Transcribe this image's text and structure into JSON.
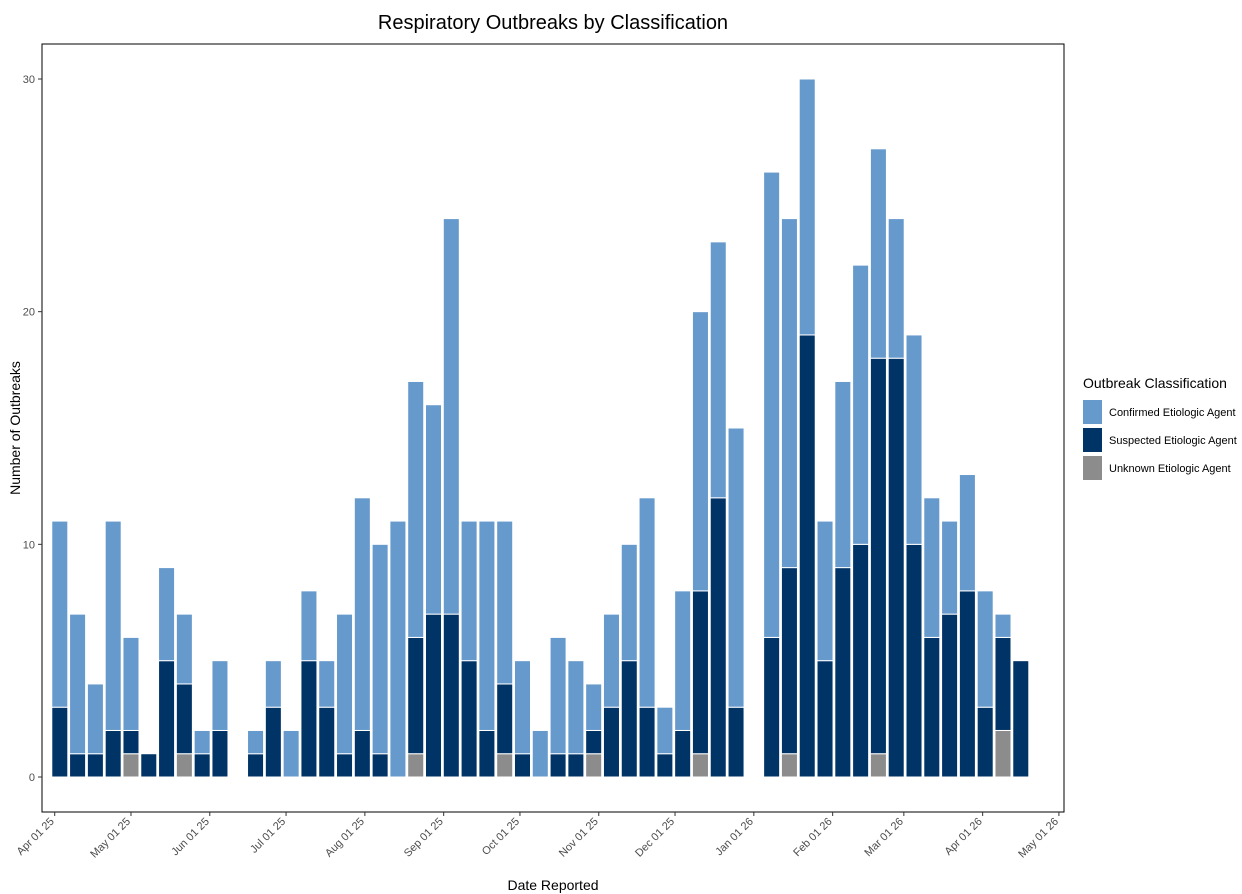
{
  "chart_data": {
    "type": "bar",
    "stacked": true,
    "title": "Respiratory Outbreaks by Classification",
    "xlabel": "Date Reported",
    "ylabel": "Number of Outbreaks",
    "ylim": [
      0,
      30
    ],
    "yticks": [
      0,
      10,
      20,
      30
    ],
    "xlim": [
      "2025-03-27",
      "2026-05-03"
    ],
    "xticks": [
      {
        "date": "2025-04-01",
        "label": "Apr 01 25"
      },
      {
        "date": "2025-05-01",
        "label": "May 01 25"
      },
      {
        "date": "2025-06-01",
        "label": "Jun 01 25"
      },
      {
        "date": "2025-07-01",
        "label": "Jul 01 25"
      },
      {
        "date": "2025-08-01",
        "label": "Aug 01 25"
      },
      {
        "date": "2025-09-01",
        "label": "Sep 01 25"
      },
      {
        "date": "2025-10-01",
        "label": "Oct 01 25"
      },
      {
        "date": "2025-11-01",
        "label": "Nov 01 25"
      },
      {
        "date": "2025-12-01",
        "label": "Dec 01 25"
      },
      {
        "date": "2026-01-01",
        "label": "Jan 01 26"
      },
      {
        "date": "2026-02-01",
        "label": "Feb 01 26"
      },
      {
        "date": "2026-03-01",
        "label": "Mar 01 26"
      },
      {
        "date": "2026-04-01",
        "label": "Apr 01 26"
      },
      {
        "date": "2026-05-01",
        "label": "May 01 26"
      }
    ],
    "grid": false,
    "legend": {
      "title": "Outbreak Classification",
      "position": "right"
    },
    "categories": [
      "2025-04-03",
      "2025-04-10",
      "2025-04-17",
      "2025-04-24",
      "2025-05-01",
      "2025-05-08",
      "2025-05-15",
      "2025-05-22",
      "2025-05-29",
      "2025-06-05",
      "2025-06-19",
      "2025-06-26",
      "2025-07-03",
      "2025-07-10",
      "2025-07-17",
      "2025-07-24",
      "2025-07-31",
      "2025-08-07",
      "2025-08-14",
      "2025-08-21",
      "2025-08-28",
      "2025-09-04",
      "2025-09-11",
      "2025-09-18",
      "2025-09-25",
      "2025-10-02",
      "2025-10-09",
      "2025-10-16",
      "2025-10-23",
      "2025-10-30",
      "2025-11-06",
      "2025-11-13",
      "2025-11-20",
      "2025-11-27",
      "2025-12-04",
      "2025-12-11",
      "2025-12-18",
      "2025-12-25",
      "2026-01-08",
      "2026-01-15",
      "2026-01-22",
      "2026-01-29",
      "2026-02-05",
      "2026-02-12",
      "2026-02-19",
      "2026-02-26",
      "2026-03-05",
      "2026-03-12",
      "2026-03-19",
      "2026-03-26",
      "2026-04-02",
      "2026-04-09",
      "2026-04-16"
    ],
    "series": [
      {
        "name": "Unknown Etiologic Agent",
        "color": "#8c8c8c",
        "values": [
          0,
          0,
          0,
          0,
          1,
          0,
          0,
          1,
          0,
          0,
          0,
          0,
          0,
          0,
          0,
          0,
          0,
          0,
          0,
          1,
          0,
          0,
          0,
          0,
          1,
          0,
          0,
          0,
          0,
          1,
          0,
          0,
          0,
          0,
          0,
          1,
          0,
          0,
          0,
          1,
          0,
          0,
          0,
          0,
          1,
          0,
          0,
          0,
          0,
          0,
          0,
          2,
          0
        ]
      },
      {
        "name": "Suspected Etiologic Agent",
        "color": "#003366",
        "values": [
          3,
          1,
          1,
          2,
          1,
          1,
          5,
          3,
          1,
          2,
          1,
          3,
          0,
          5,
          3,
          1,
          2,
          1,
          0,
          5,
          7,
          7,
          5,
          2,
          3,
          1,
          0,
          1,
          1,
          1,
          3,
          5,
          3,
          1,
          2,
          7,
          12,
          3,
          6,
          8,
          19,
          5,
          9,
          10,
          17,
          18,
          10,
          6,
          7,
          8,
          3,
          4,
          5
        ]
      },
      {
        "name": "Confirmed Etiologic Agent",
        "color": "#6699cc",
        "values": [
          8,
          6,
          3,
          9,
          4,
          0,
          4,
          3,
          1,
          3,
          1,
          2,
          2,
          3,
          2,
          6,
          10,
          9,
          11,
          11,
          9,
          17,
          6,
          9,
          7,
          4,
          2,
          5,
          4,
          2,
          4,
          5,
          9,
          2,
          6,
          12,
          11,
          12,
          20,
          15,
          11,
          6,
          8,
          12,
          9,
          6,
          9,
          6,
          4,
          5,
          5,
          1,
          0
        ]
      }
    ]
  }
}
